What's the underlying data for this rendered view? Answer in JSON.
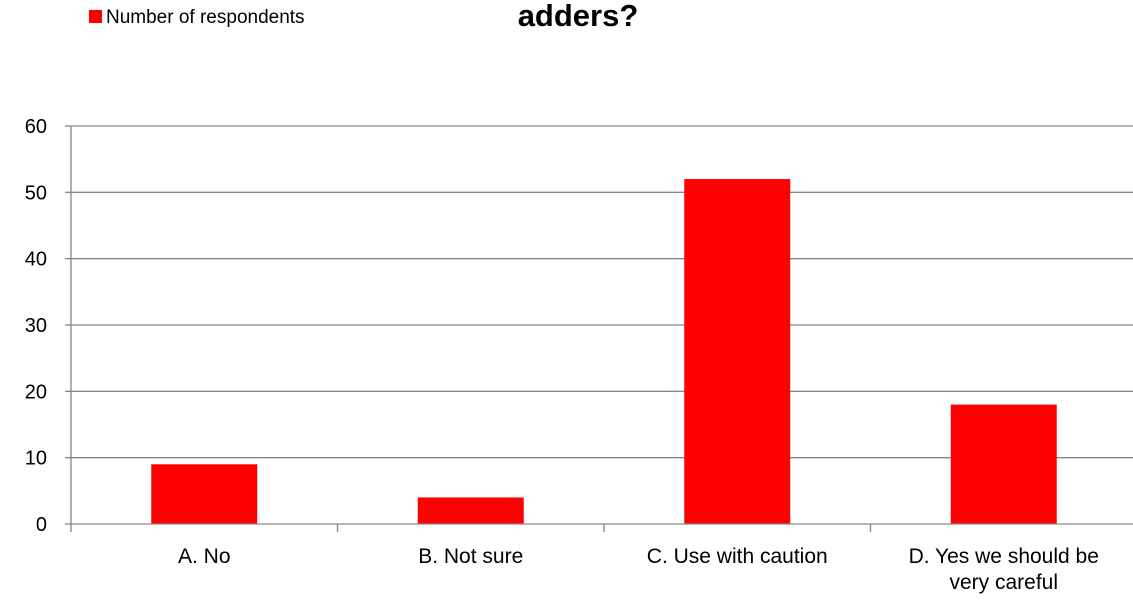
{
  "chart_data": {
    "type": "bar",
    "title": "adders?",
    "categories": [
      [
        "A. No"
      ],
      [
        "B. Not sure"
      ],
      [
        "C. Use with caution"
      ],
      [
        "D. Yes we should be",
        "very careful"
      ]
    ],
    "series": [
      {
        "name": "Number of respondents",
        "values": [
          9,
          4,
          52,
          18
        ],
        "color": "#ff0000"
      }
    ],
    "ylim": [
      0,
      60
    ],
    "yticks": [
      0,
      10,
      20,
      30,
      40,
      50,
      60
    ],
    "grid": true,
    "legend": "top-left",
    "colors": {
      "bar": "#ff0000",
      "grid": "#868686",
      "axis": "#868686",
      "text": "#000000"
    }
  }
}
